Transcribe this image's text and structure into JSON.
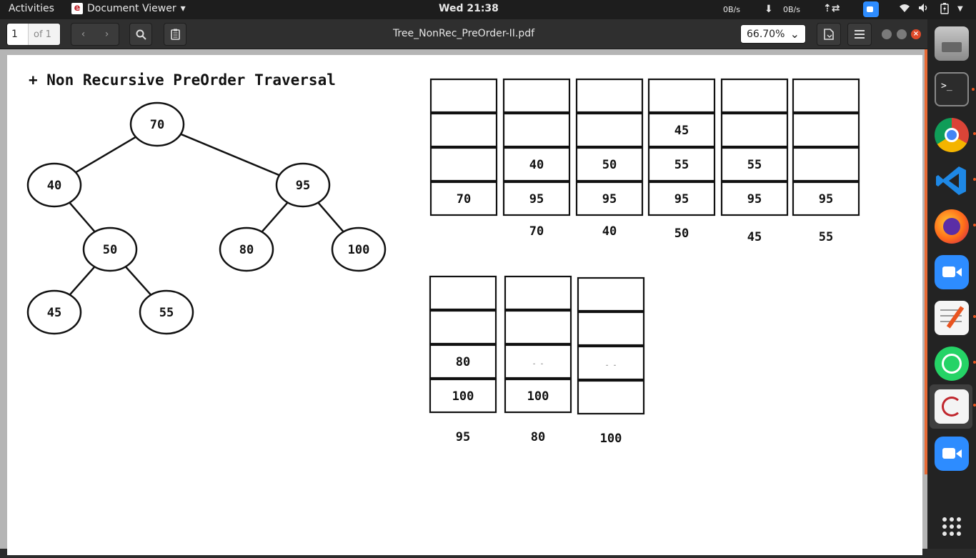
{
  "topbar": {
    "activities": "Activities",
    "app_name": "Document Viewer",
    "app_menu_arrow": "▾",
    "clock": "Wed 21:38",
    "net_up": "0B/s",
    "net_down": "0B/s",
    "net_down_icon": "⬇",
    "net_up_icon": "⇡⇄",
    "system_menu_arrow": "▼",
    "icons": [
      "zoom-tray-icon",
      "wifi-icon",
      "volume-icon",
      "battery-icon"
    ]
  },
  "header": {
    "page_current": "1",
    "page_total": "of 1",
    "prev": "‹",
    "next": "›",
    "title": "Tree_NonRec_PreOrder-II.pdf",
    "zoom": "66.70%",
    "zoom_arrow": "⌄",
    "close": "×"
  },
  "document": {
    "heading": "+ Non Recursive PreOrder Traversal",
    "tree": {
      "nodes": [
        {
          "id": "n70",
          "label": "70"
        },
        {
          "id": "n40",
          "label": "40"
        },
        {
          "id": "n95",
          "label": "95"
        },
        {
          "id": "n50",
          "label": "50"
        },
        {
          "id": "n80",
          "label": "80"
        },
        {
          "id": "n100",
          "label": "100"
        },
        {
          "id": "n45",
          "label": "45"
        },
        {
          "id": "n55",
          "label": "55"
        }
      ],
      "edges": [
        [
          "n70",
          "n40"
        ],
        [
          "n70",
          "n95"
        ],
        [
          "n40",
          "n50"
        ],
        [
          "n95",
          "n80"
        ],
        [
          "n95",
          "n100"
        ],
        [
          "n50",
          "n45"
        ],
        [
          "n50",
          "n55"
        ]
      ]
    },
    "stacks": [
      {
        "cells": [
          "",
          "",
          "",
          "70"
        ],
        "output": ""
      },
      {
        "cells": [
          "",
          "",
          "40",
          "95"
        ],
        "output": "70"
      },
      {
        "cells": [
          "",
          "",
          "50",
          "95"
        ],
        "output": "40"
      },
      {
        "cells": [
          "",
          "45",
          "55",
          "95"
        ],
        "output": "50"
      },
      {
        "cells": [
          "",
          "",
          "55",
          "95"
        ],
        "output": "45"
      },
      {
        "cells": [
          "",
          "",
          "",
          "95"
        ],
        "output": "55"
      },
      {
        "cells": [
          "",
          "",
          "80",
          "100"
        ],
        "output": "95"
      },
      {
        "cells": [
          "",
          "",
          "- -",
          "100"
        ],
        "output": "80"
      },
      {
        "cells": [
          "",
          "",
          "- -",
          ""
        ],
        "output": "100"
      }
    ]
  },
  "dock": {
    "items": [
      "files-icon",
      "terminal-icon",
      "chrome-icon",
      "vscode-icon",
      "firefox-icon",
      "zoom-icon",
      "text-editor-icon",
      "whatsapp-icon",
      "document-viewer-icon",
      "zoom-meetings-icon",
      "app-grid-icon"
    ]
  },
  "colors": {
    "topbar_bg": "#1d1d1d",
    "header_bg": "#2f2f2f",
    "accent_orange": "#e86a35",
    "close_red": "#e04a2a"
  }
}
